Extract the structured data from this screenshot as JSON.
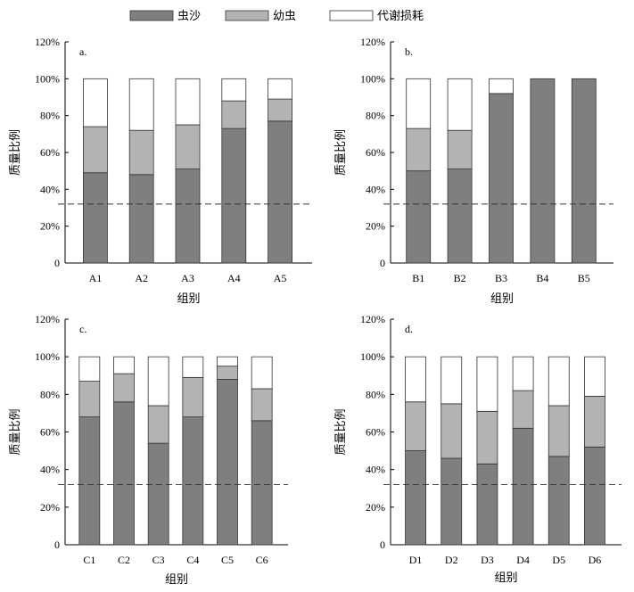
{
  "legend": [
    {
      "name": "虫沙",
      "color": "#7f7f7f"
    },
    {
      "name": "幼虫",
      "color": "#b3b3b3"
    },
    {
      "name": "代谢损耗",
      "color": "#ffffff"
    }
  ],
  "chart_data": [
    {
      "type": "bar",
      "stacked": true,
      "panel_label": "a.",
      "xlabel": "组别",
      "ylabel": "质量比例",
      "ylim": [
        0,
        120
      ],
      "yticks": [
        "0",
        "20%",
        "40%",
        "60%",
        "80%",
        "100%",
        "120%"
      ],
      "reference_line": 32,
      "categories": [
        "A1",
        "A2",
        "A3",
        "A4",
        "A5"
      ],
      "series": [
        {
          "name": "虫沙",
          "values": [
            49,
            48,
            51,
            73,
            77
          ]
        },
        {
          "name": "幼虫",
          "values": [
            25,
            24,
            24,
            15,
            12
          ]
        },
        {
          "name": "代谢损耗",
          "values": [
            26,
            28,
            25,
            12,
            11
          ]
        }
      ]
    },
    {
      "type": "bar",
      "stacked": true,
      "panel_label": "b.",
      "xlabel": "组别",
      "ylabel": "质量比例",
      "ylim": [
        0,
        120
      ],
      "yticks": [
        "0",
        "20%",
        "40%",
        "60%",
        "80%",
        "100%",
        "120%"
      ],
      "reference_line": 32,
      "categories": [
        "B1",
        "B2",
        "B3",
        "B4",
        "B5"
      ],
      "series": [
        {
          "name": "虫沙",
          "values": [
            50,
            51,
            92,
            100,
            100
          ]
        },
        {
          "name": "幼虫",
          "values": [
            23,
            21,
            0,
            0,
            0
          ]
        },
        {
          "name": "代谢损耗",
          "values": [
            27,
            28,
            8,
            0,
            0
          ]
        }
      ]
    },
    {
      "type": "bar",
      "stacked": true,
      "panel_label": "c.",
      "xlabel": "组别",
      "ylabel": "质量比例",
      "ylim": [
        0,
        120
      ],
      "yticks": [
        "0",
        "20%",
        "40%",
        "60%",
        "80%",
        "100%",
        "120%"
      ],
      "reference_line": 32,
      "categories": [
        "C1",
        "C2",
        "C3",
        "C4",
        "C5",
        "C6"
      ],
      "series": [
        {
          "name": "虫沙",
          "values": [
            68,
            76,
            54,
            68,
            88,
            66
          ]
        },
        {
          "name": "幼虫",
          "values": [
            19,
            15,
            20,
            21,
            7,
            17
          ]
        },
        {
          "name": "代谢损耗",
          "values": [
            13,
            9,
            26,
            11,
            5,
            17
          ]
        }
      ]
    },
    {
      "type": "bar",
      "stacked": true,
      "panel_label": "d.",
      "xlabel": "组别",
      "ylabel": "质量比例",
      "ylim": [
        0,
        120
      ],
      "yticks": [
        "0",
        "20%",
        "40%",
        "60%",
        "80%",
        "100%",
        "120%"
      ],
      "reference_line": 32,
      "categories": [
        "D1",
        "D2",
        "D3",
        "D4",
        "D5",
        "D6"
      ],
      "series": [
        {
          "name": "虫沙",
          "values": [
            50,
            46,
            43,
            62,
            47,
            52
          ]
        },
        {
          "name": "幼虫",
          "values": [
            26,
            29,
            28,
            20,
            27,
            27
          ]
        },
        {
          "name": "代谢损耗",
          "values": [
            24,
            25,
            29,
            18,
            26,
            21
          ]
        }
      ]
    }
  ]
}
